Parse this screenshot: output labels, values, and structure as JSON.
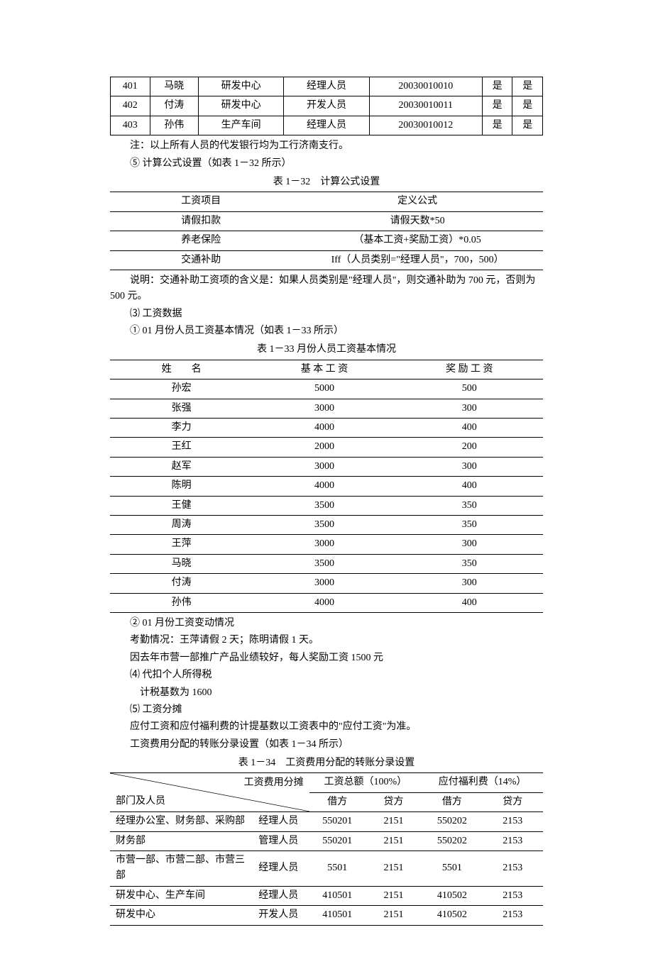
{
  "table1": {
    "rows": [
      [
        "401",
        "马晓",
        "研发中心",
        "经理人员",
        "20030010010",
        "是",
        "是"
      ],
      [
        "402",
        "付涛",
        "研发中心",
        "开发人员",
        "20030010011",
        "是",
        "是"
      ],
      [
        "403",
        "孙伟",
        "生产车间",
        "经理人员",
        "20030010012",
        "是",
        "是"
      ]
    ]
  },
  "note1": "注：以上所有人员的代发银行均为工行济南支行。",
  "line5": "⑤ 计算公式设置（如表 1－32 所示）",
  "caption2": "表 1－32　计算公式设置",
  "table2": {
    "headers": [
      "工资项目",
      "定义公式"
    ],
    "rows": [
      [
        "请假扣款",
        "请假天数*50"
      ],
      [
        "养老保险",
        "（基本工资+奖励工资）*0.05"
      ],
      [
        "交通补助",
        "Iff（人员类别=\"经理人员\"，700，500）"
      ]
    ]
  },
  "note2": "说明：交通补助工资项的含义是：如果人员类别是\"经理人员\"，则交通补助为 700 元，否则为 500 元。",
  "line3": "⑶ 工资数据",
  "line3a": "① 01 月份人员工资基本情况（如表 1－33 所示）",
  "caption3": "表 1－33 月份人员工资基本情况",
  "table3": {
    "headers": [
      "姓　　名",
      "基 本 工 资",
      "奖 励 工 资"
    ],
    "rows": [
      [
        "孙宏",
        "5000",
        "500"
      ],
      [
        "张强",
        "3000",
        "300"
      ],
      [
        "李力",
        "4000",
        "400"
      ],
      [
        "王红",
        "2000",
        "200"
      ],
      [
        "赵军",
        "3000",
        "300"
      ],
      [
        "陈明",
        "4000",
        "400"
      ],
      [
        "王健",
        "3500",
        "350"
      ],
      [
        "周涛",
        "3500",
        "350"
      ],
      [
        "王萍",
        "3000",
        "300"
      ],
      [
        "马晓",
        "3500",
        "350"
      ],
      [
        "付涛",
        "3000",
        "300"
      ],
      [
        "孙伟",
        "4000",
        "400"
      ]
    ]
  },
  "line4a": "② 01 月份工资变动情况",
  "line4b": "考勤情况：王萍请假 2 天；陈明请假 1 天。",
  "line4c": "因去年市营一部推广产品业绩较好，每人奖励工资 1500 元",
  "line4d": "⑷ 代扣个人所得税",
  "line4e": "计税基数为 1600",
  "line5a": "⑸ 工资分摊",
  "line5b": "应付工资和应付福利费的计提基数以工资表中的\"应付工资\"为准。",
  "line5c": "工资费用分配的转账分录设置（如表 1－34 所示）",
  "caption4": "表 1－34　工资费用分配的转账分录设置",
  "table4": {
    "diagTop": "工资费用分摊",
    "diagBottom": "部门及人员",
    "group1": "工资总额（100%）",
    "group2": "应付福利费（14%）",
    "sub": [
      "借方",
      "贷方",
      "借方",
      "贷方"
    ],
    "rows": [
      [
        "经理办公室、财务部、采购部",
        "经理人员",
        "550201",
        "2151",
        "550202",
        "2153"
      ],
      [
        "财务部",
        "管理人员",
        "550201",
        "2151",
        "550202",
        "2153"
      ],
      [
        "市营一部、市营二部、市营三部",
        "经理人员",
        "5501",
        "2151",
        "5501",
        "2153"
      ],
      [
        "研发中心、生产车间",
        "经理人员",
        "410501",
        "2151",
        "410502",
        "2153"
      ],
      [
        "研发中心",
        "开发人员",
        "410501",
        "2151",
        "410502",
        "2153"
      ]
    ]
  }
}
